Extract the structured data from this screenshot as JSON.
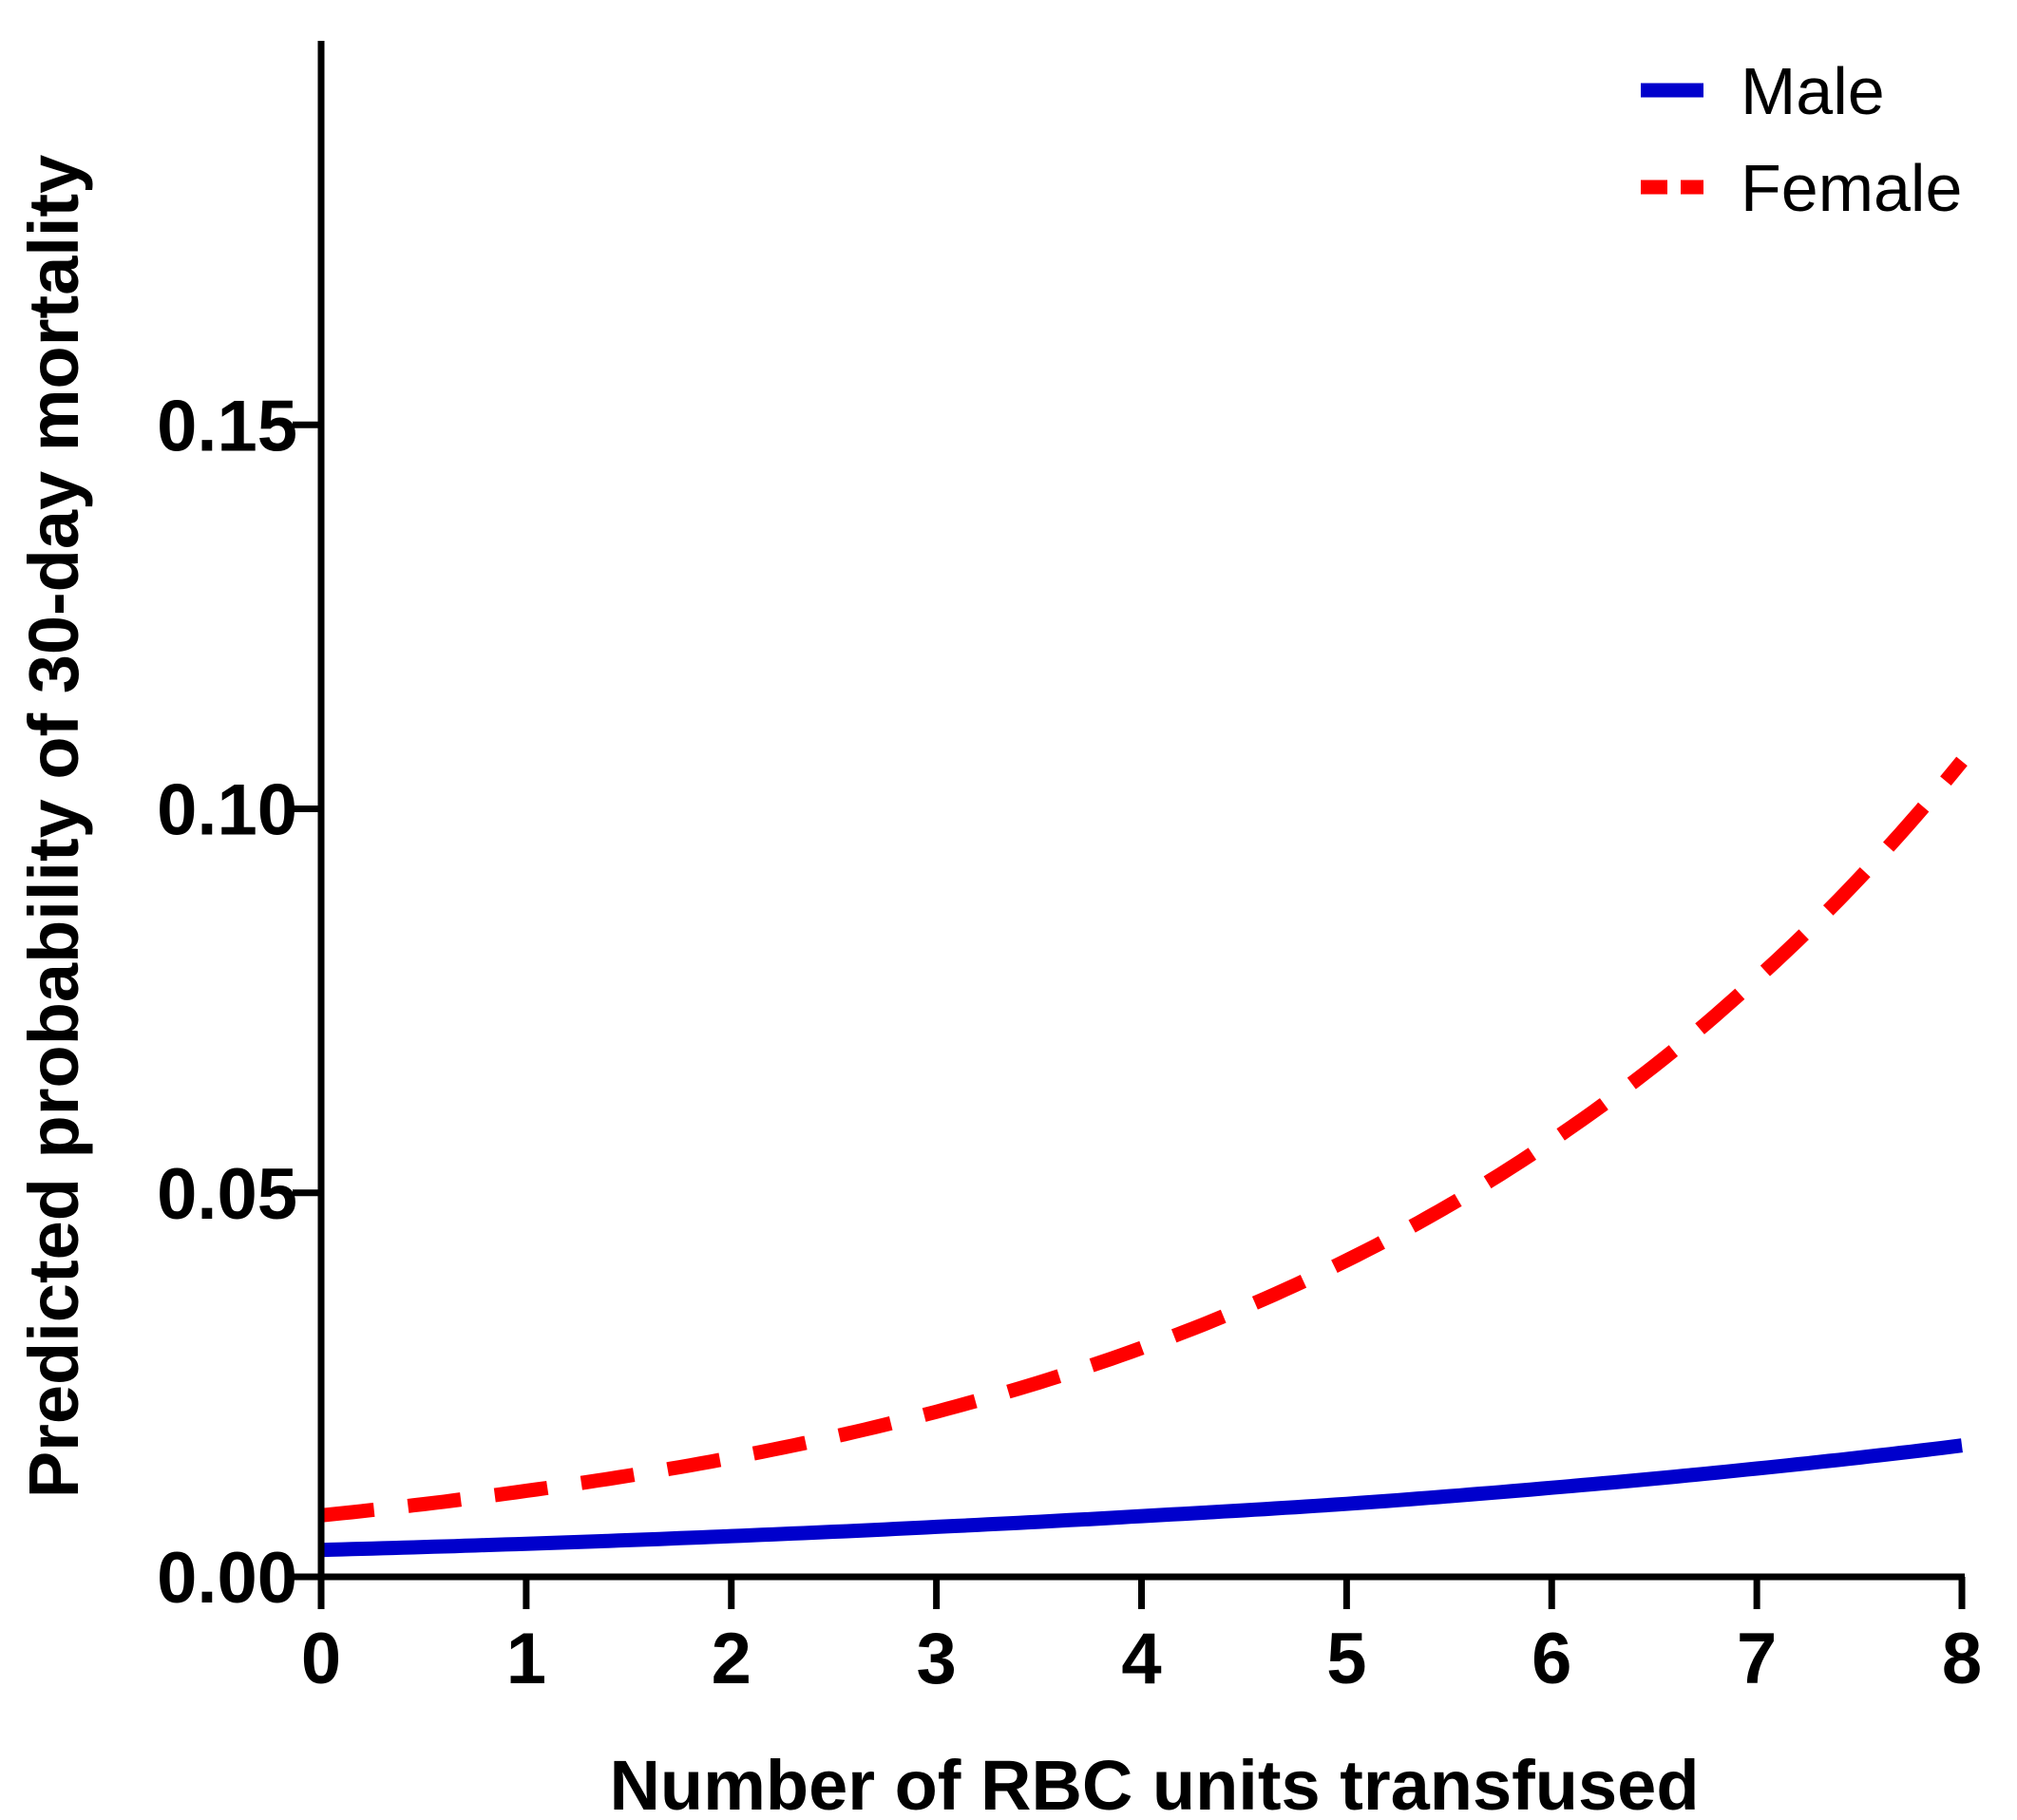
{
  "chart_data": {
    "type": "line",
    "title": "",
    "xlabel": "Number of RBC units transfused",
    "ylabel": "Predicted probability of 30-day mortality",
    "xlim": [
      0,
      8
    ],
    "ylim": [
      0,
      0.2
    ],
    "xticks": [
      0,
      1,
      2,
      3,
      4,
      5,
      6,
      7,
      8
    ],
    "xtick_labels": [
      "0",
      "1",
      "2",
      "3",
      "4",
      "5",
      "6",
      "7",
      "8"
    ],
    "yticks": [
      0,
      0.05,
      0.1,
      0.15
    ],
    "ytick_labels": [
      "0.00",
      "0.05",
      "0.10",
      "0.15"
    ],
    "grid": false,
    "legend_position": "top-right",
    "x": [
      0,
      1,
      2,
      3,
      4,
      5,
      6,
      7,
      8
    ],
    "series": [
      {
        "name": "Male",
        "color": "#0000cc",
        "style": "solid",
        "values": [
          0.0035,
          0.0043,
          0.0053,
          0.0065,
          0.0079,
          0.0095,
          0.0116,
          0.0141,
          0.0171
        ]
      },
      {
        "name": "Female",
        "color": "#ff0000",
        "style": "dashed",
        "values": [
          0.008,
          0.0112,
          0.0155,
          0.0215,
          0.0298,
          0.0412,
          0.0568,
          0.0779,
          0.1062
        ]
      }
    ]
  }
}
